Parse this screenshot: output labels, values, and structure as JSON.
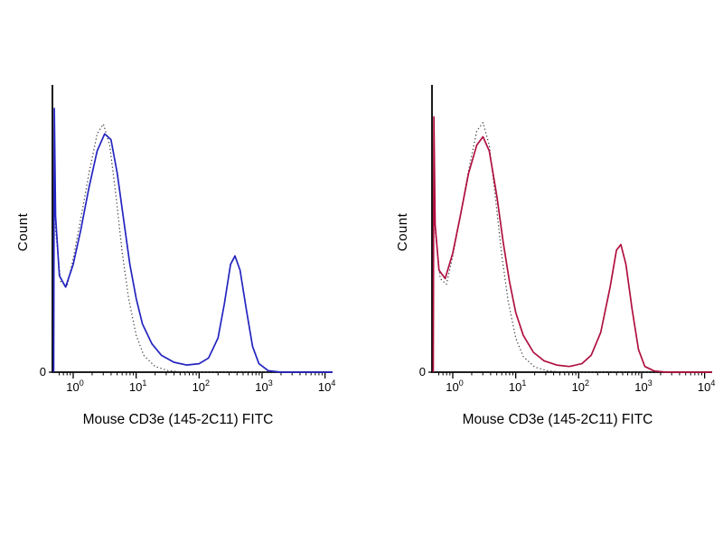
{
  "page": {
    "background": "#ffffff"
  },
  "chart_data": [
    {
      "type": "line",
      "subtype": "flow-cytometry-histogram",
      "title": "",
      "xlabel": "Mouse CD3e (145-2C11) FITC",
      "ylabel": "Count",
      "y_origin_label": "0",
      "x_scale": "log10",
      "x_tick_base": "10",
      "x_ticks_exponents": [
        0,
        1,
        2,
        3,
        4
      ],
      "x_range_log": [
        -0.33,
        4.12
      ],
      "y_range": [
        0,
        1
      ],
      "grid": false,
      "legend": "none",
      "series": [
        {
          "name": "stained_solid",
          "style": "solid",
          "color": "#2424c0",
          "points": [
            [
              -0.31,
              0.0
            ],
            [
              -0.3,
              0.93
            ],
            [
              -0.28,
              0.55
            ],
            [
              -0.22,
              0.34
            ],
            [
              -0.12,
              0.3
            ],
            [
              0.0,
              0.38
            ],
            [
              0.12,
              0.5
            ],
            [
              0.25,
              0.65
            ],
            [
              0.38,
              0.78
            ],
            [
              0.5,
              0.84
            ],
            [
              0.6,
              0.82
            ],
            [
              0.7,
              0.7
            ],
            [
              0.8,
              0.54
            ],
            [
              0.9,
              0.38
            ],
            [
              1.0,
              0.26
            ],
            [
              1.1,
              0.17
            ],
            [
              1.25,
              0.1
            ],
            [
              1.4,
              0.06
            ],
            [
              1.6,
              0.035
            ],
            [
              1.8,
              0.025
            ],
            [
              2.0,
              0.03
            ],
            [
              2.15,
              0.05
            ],
            [
              2.3,
              0.12
            ],
            [
              2.4,
              0.24
            ],
            [
              2.5,
              0.38
            ],
            [
              2.57,
              0.41
            ],
            [
              2.65,
              0.36
            ],
            [
              2.75,
              0.22
            ],
            [
              2.85,
              0.09
            ],
            [
              2.95,
              0.03
            ],
            [
              3.1,
              0.005
            ],
            [
              3.3,
              0.0
            ],
            [
              4.12,
              0.0
            ]
          ]
        },
        {
          "name": "control_dotted",
          "style": "dotted",
          "color": "#3a3a3a",
          "points": [
            [
              -0.31,
              0.0
            ],
            [
              -0.3,
              0.88
            ],
            [
              -0.28,
              0.5
            ],
            [
              -0.2,
              0.32
            ],
            [
              -0.1,
              0.3
            ],
            [
              0.0,
              0.4
            ],
            [
              0.12,
              0.54
            ],
            [
              0.25,
              0.7
            ],
            [
              0.38,
              0.84
            ],
            [
              0.48,
              0.875
            ],
            [
              0.58,
              0.8
            ],
            [
              0.68,
              0.62
            ],
            [
              0.78,
              0.42
            ],
            [
              0.88,
              0.26
            ],
            [
              1.0,
              0.13
            ],
            [
              1.12,
              0.06
            ],
            [
              1.3,
              0.02
            ],
            [
              1.5,
              0.006
            ],
            [
              1.75,
              0.0
            ],
            [
              4.12,
              0.0
            ]
          ]
        }
      ]
    },
    {
      "type": "line",
      "subtype": "flow-cytometry-histogram",
      "title": "",
      "xlabel": "Mouse CD3e (145-2C11) FITC",
      "ylabel": "Count",
      "y_origin_label": "0",
      "x_scale": "log10",
      "x_tick_base": "10",
      "x_ticks_exponents": [
        0,
        1,
        2,
        3,
        4
      ],
      "x_range_log": [
        -0.33,
        4.12
      ],
      "y_range": [
        0,
        1
      ],
      "grid": false,
      "legend": "none",
      "series": [
        {
          "name": "stained_solid",
          "style": "solid",
          "color": "#b01040",
          "points": [
            [
              -0.31,
              0.0
            ],
            [
              -0.3,
              0.9
            ],
            [
              -0.28,
              0.52
            ],
            [
              -0.22,
              0.36
            ],
            [
              -0.12,
              0.33
            ],
            [
              0.0,
              0.42
            ],
            [
              0.12,
              0.55
            ],
            [
              0.25,
              0.7
            ],
            [
              0.38,
              0.8
            ],
            [
              0.48,
              0.83
            ],
            [
              0.58,
              0.78
            ],
            [
              0.7,
              0.62
            ],
            [
              0.8,
              0.46
            ],
            [
              0.9,
              0.32
            ],
            [
              1.0,
              0.21
            ],
            [
              1.12,
              0.13
            ],
            [
              1.28,
              0.07
            ],
            [
              1.45,
              0.04
            ],
            [
              1.65,
              0.025
            ],
            [
              1.85,
              0.02
            ],
            [
              2.05,
              0.03
            ],
            [
              2.2,
              0.06
            ],
            [
              2.35,
              0.14
            ],
            [
              2.5,
              0.3
            ],
            [
              2.6,
              0.43
            ],
            [
              2.67,
              0.45
            ],
            [
              2.75,
              0.38
            ],
            [
              2.85,
              0.22
            ],
            [
              2.95,
              0.08
            ],
            [
              3.05,
              0.02
            ],
            [
              3.2,
              0.004
            ],
            [
              3.4,
              0.0
            ],
            [
              4.12,
              0.0
            ]
          ]
        },
        {
          "name": "control_dotted",
          "style": "dotted",
          "color": "#3a3a3a",
          "points": [
            [
              -0.31,
              0.0
            ],
            [
              -0.3,
              0.87
            ],
            [
              -0.28,
              0.5
            ],
            [
              -0.2,
              0.33
            ],
            [
              -0.1,
              0.31
            ],
            [
              0.0,
              0.41
            ],
            [
              0.12,
              0.55
            ],
            [
              0.25,
              0.71
            ],
            [
              0.38,
              0.85
            ],
            [
              0.48,
              0.88
            ],
            [
              0.58,
              0.8
            ],
            [
              0.68,
              0.61
            ],
            [
              0.78,
              0.41
            ],
            [
              0.88,
              0.25
            ],
            [
              1.0,
              0.12
            ],
            [
              1.12,
              0.055
            ],
            [
              1.3,
              0.018
            ],
            [
              1.5,
              0.005
            ],
            [
              1.75,
              0.0
            ],
            [
              4.12,
              0.0
            ]
          ]
        }
      ]
    }
  ]
}
